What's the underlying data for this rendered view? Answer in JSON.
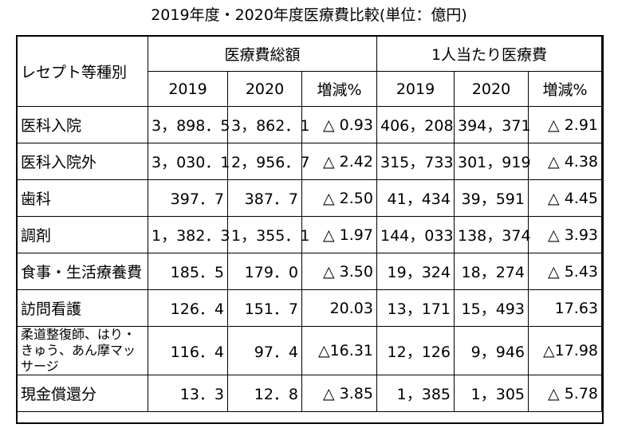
{
  "title": "2019年度・2020年度医療費比較(単位：億円)",
  "header": {
    "category": "レセプト等種別",
    "group_total": "医療費総額",
    "group_per_person": "1人当たり医療費",
    "y2019": "2019",
    "y2020": "2020",
    "change": "増減%"
  },
  "rows": [
    {
      "label": "医科入院",
      "t2019": "3，898．5",
      "t2020": "3，862．1",
      "tchg": "△ 0.93",
      "p2019": "406，208",
      "p2020": "394，371",
      "pchg": "△ 2.91"
    },
    {
      "label": "医科入院外",
      "t2019": "3，030．1",
      "t2020": "2，956．7",
      "tchg": "△ 2.42",
      "p2019": "315，733",
      "p2020": "301，919",
      "pchg": "△ 4.38"
    },
    {
      "label": "歯科",
      "t2019": "397．7",
      "t2020": "387．7",
      "tchg": "△ 2.50",
      "p2019": "41，434",
      "p2020": "39，591",
      "pchg": "△ 4.45"
    },
    {
      "label": "調剤",
      "t2019": "1，382．3",
      "t2020": "1，355．1",
      "tchg": "△ 1.97",
      "p2019": "144，033",
      "p2020": "138，374",
      "pchg": "△ 3.93"
    },
    {
      "label": "食事・生活療養費",
      "t2019": "185．5",
      "t2020": "179．0",
      "tchg": "△ 3.50",
      "p2019": "19，324",
      "p2020": "18，274",
      "pchg": "△ 5.43"
    },
    {
      "label": "訪問看護",
      "t2019": "126．4",
      "t2020": "151．7",
      "tchg": "20.03",
      "p2019": "13，171",
      "p2020": "15，493",
      "pchg": "17.63"
    },
    {
      "label": "柔道整復師、はり・きゅう、あん摩マッサージ",
      "t2019": "116．4",
      "t2020": "97．4",
      "tchg": "△16.31",
      "p2019": "12，126",
      "p2020": "9，946",
      "pchg": "△17.98"
    },
    {
      "label": "現金償還分",
      "t2019": "13．3",
      "t2020": "12．8",
      "tchg": "△ 3.85",
      "p2019": "1，385",
      "p2020": "1，305",
      "pchg": "△ 5.78"
    }
  ]
}
